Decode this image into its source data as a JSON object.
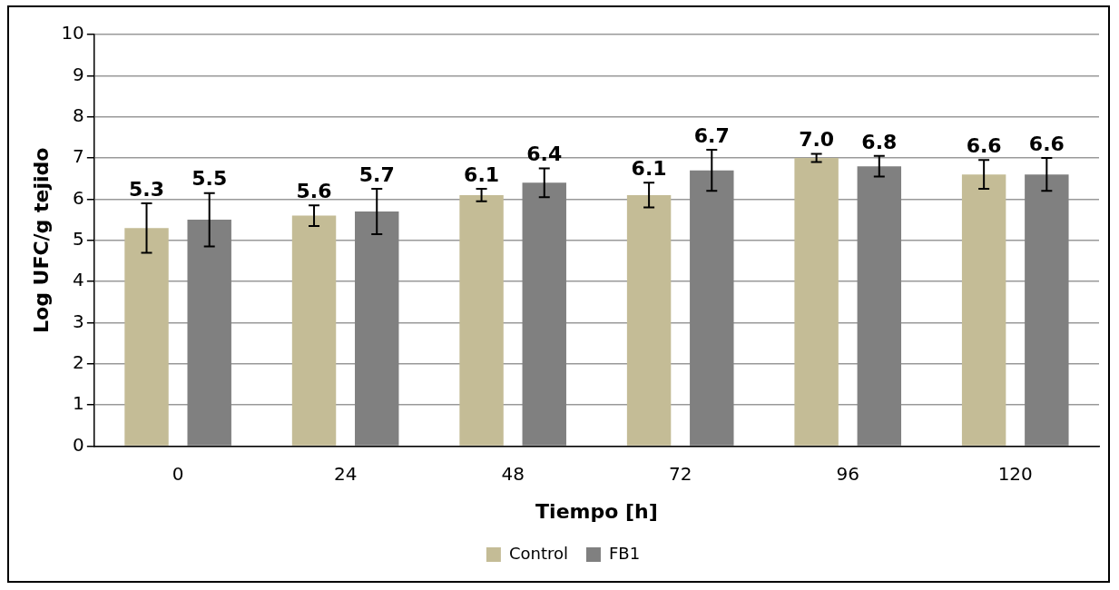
{
  "chart_data": {
    "type": "bar",
    "xlabel": "Tiempo [h]",
    "ylabel": "Log UFC/g tejido",
    "categories": [
      "0",
      "24",
      "48",
      "72",
      "96",
      "120"
    ],
    "series": [
      {
        "name": "Control",
        "color": "#c4bc96",
        "values": [
          5.3,
          5.6,
          6.1,
          6.1,
          7.0,
          6.6
        ],
        "errors": [
          0.6,
          0.25,
          0.15,
          0.3,
          0.1,
          0.35
        ],
        "value_labels": [
          "5.3",
          "5.6",
          "6.1",
          "6.1",
          "7.0",
          "6.6"
        ]
      },
      {
        "name": "FB1",
        "color": "#808080",
        "values": [
          5.5,
          5.7,
          6.4,
          6.7,
          6.8,
          6.6
        ],
        "errors": [
          0.65,
          0.55,
          0.35,
          0.5,
          0.25,
          0.4
        ],
        "value_labels": [
          "5.5",
          "5.7",
          "6.4",
          "6.7",
          "6.8",
          "6.6"
        ]
      }
    ],
    "ylim": [
      0,
      10
    ],
    "yticks": [
      0,
      1,
      2,
      3,
      4,
      5,
      6,
      7,
      8,
      9,
      10
    ],
    "grid": "y",
    "legend": "bottom"
  }
}
